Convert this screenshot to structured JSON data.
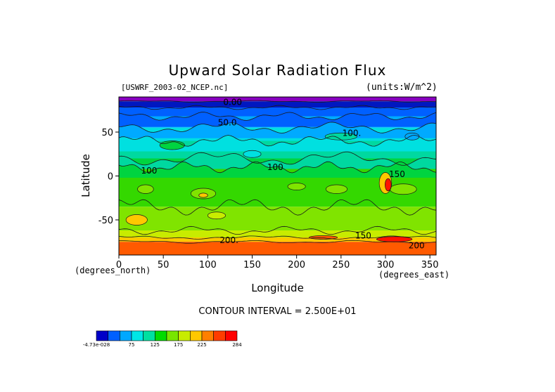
{
  "chart_data": {
    "type": "heatmap",
    "title": "Upward Solar Radiation Flux",
    "file_label": "[USWRF_2003-02_NCEP.nc]",
    "units_label": "(units:W/m^2)",
    "xlabel": "Longitude",
    "ylabel": "Latitude",
    "x_unit_label": "(degrees_east)",
    "y_unit_label": "(degrees_north)",
    "xlim": [
      0,
      357
    ],
    "ylim": [
      -90,
      90
    ],
    "x_ticks": [
      0,
      50,
      100,
      150,
      200,
      250,
      300,
      350
    ],
    "y_ticks": [
      50,
      0,
      -50
    ],
    "contour_note": "CONTOUR INTERVAL = 2.500E+01",
    "contour_labels": [
      {
        "text": "0.00",
        "lon": 128,
        "lat": 84
      },
      {
        "text": "50.0",
        "lon": 122,
        "lat": 61
      },
      {
        "text": "100.",
        "lon": 262,
        "lat": 49
      },
      {
        "text": "100",
        "lon": 176,
        "lat": 10
      },
      {
        "text": "100",
        "lon": 34,
        "lat": 6
      },
      {
        "text": "150",
        "lon": 313,
        "lat": 2
      },
      {
        "text": "150",
        "lon": 275,
        "lat": -68
      },
      {
        "text": "200.",
        "lon": 124,
        "lat": -73
      },
      {
        "text": "200",
        "lon": 335,
        "lat": -79
      }
    ],
    "color_bar": {
      "colors": [
        "#0000c8",
        "#0060ff",
        "#00a8ff",
        "#00e6e6",
        "#00e0a0",
        "#00dc00",
        "#78e600",
        "#c8eb00",
        "#ffc800",
        "#ff7f00",
        "#ff3c00",
        "#ff0000"
      ],
      "tick_labels": [
        "-4.73e-028",
        "75",
        "125",
        "175",
        "225",
        "284"
      ]
    },
    "colors": {
      "band_lat_85_90": "#8800c0",
      "band_lat_78_85": "#0018c0",
      "band_lat_68_78": "#0060ff",
      "band_lat_55_68": "#00aaff",
      "band_lat_40_55": "#00e0e0",
      "band_lat_20_40": "#00d8a0",
      "band_lat_10_20": "#00d440",
      "band_lat_-35_10": "#34d800",
      "band_lat_-62_-35": "#80e400",
      "band_lat_-70_-62": "#c8ec00",
      "band_lat_-75_-70": "#ffc800",
      "band_lat_-90_-75": "#ff5a00",
      "hotspot": "#ff1400"
    }
  }
}
